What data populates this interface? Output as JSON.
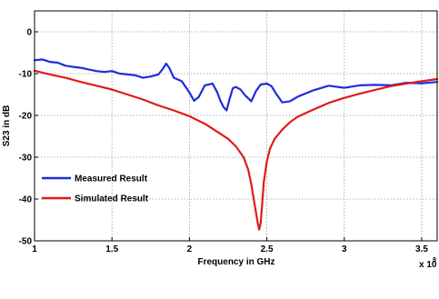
{
  "chart_data": {
    "type": "line",
    "xlabel": "Frequency in GHz",
    "ylabel": "S23 in dB",
    "x_multiplier": "x 10",
    "x_multiplier_exp": "9",
    "xlim": [
      1.0,
      3.6
    ],
    "ylim": [
      -50,
      5
    ],
    "xticks": [
      1,
      1.5,
      2,
      2.5,
      3,
      3.5
    ],
    "xtick_labels": [
      "1",
      "1.5",
      "2",
      "2.5",
      "3",
      "3.5"
    ],
    "yticks": [
      0,
      -10,
      -20,
      -30,
      -40,
      -50
    ],
    "ytick_labels": [
      "0",
      "-10",
      "-20",
      "-30",
      "-40",
      "-50"
    ],
    "grid": true,
    "legend_position": "left",
    "series": [
      {
        "name": "Measured Result",
        "color": "#1f2ed6",
        "x": [
          1.0,
          1.05,
          1.1,
          1.15,
          1.2,
          1.25,
          1.3,
          1.35,
          1.4,
          1.45,
          1.5,
          1.55,
          1.6,
          1.65,
          1.7,
          1.75,
          1.8,
          1.83,
          1.85,
          1.87,
          1.9,
          1.95,
          2.0,
          2.03,
          2.06,
          2.1,
          2.15,
          2.18,
          2.2,
          2.22,
          2.24,
          2.26,
          2.28,
          2.3,
          2.33,
          2.36,
          2.4,
          2.43,
          2.46,
          2.5,
          2.53,
          2.56,
          2.6,
          2.65,
          2.7,
          2.8,
          2.9,
          3.0,
          3.1,
          3.2,
          3.3,
          3.4,
          3.5,
          3.6
        ],
        "y": [
          -6.8,
          -6.6,
          -7.2,
          -7.4,
          -8.1,
          -8.4,
          -8.6,
          -9.0,
          -9.4,
          -9.6,
          -9.4,
          -10.0,
          -10.2,
          -10.4,
          -11.0,
          -10.7,
          -10.2,
          -8.8,
          -7.6,
          -8.6,
          -11.0,
          -11.8,
          -14.5,
          -16.5,
          -15.6,
          -12.8,
          -12.4,
          -14.5,
          -16.5,
          -18.0,
          -18.8,
          -16.0,
          -13.5,
          -13.2,
          -13.8,
          -15.2,
          -16.6,
          -14.2,
          -12.6,
          -12.4,
          -13.0,
          -14.8,
          -16.9,
          -16.6,
          -15.5,
          -14.0,
          -12.9,
          -13.4,
          -12.8,
          -12.7,
          -12.8,
          -12.2,
          -12.3,
          -12.0
        ]
      },
      {
        "name": "Simulated Result",
        "color": "#e01b1b",
        "x": [
          1.0,
          1.1,
          1.2,
          1.3,
          1.4,
          1.5,
          1.6,
          1.7,
          1.8,
          1.9,
          2.0,
          2.1,
          2.2,
          2.25,
          2.3,
          2.35,
          2.38,
          2.4,
          2.42,
          2.44,
          2.45,
          2.46,
          2.47,
          2.48,
          2.5,
          2.52,
          2.55,
          2.6,
          2.65,
          2.7,
          2.8,
          2.9,
          3.0,
          3.1,
          3.2,
          3.3,
          3.4,
          3.5,
          3.6
        ],
        "y": [
          -9.3,
          -10.2,
          -11.0,
          -12.0,
          -12.9,
          -13.8,
          -15.0,
          -16.2,
          -17.6,
          -18.8,
          -20.2,
          -22.0,
          -24.4,
          -25.6,
          -27.4,
          -30.0,
          -33.0,
          -36.5,
          -41.0,
          -45.5,
          -47.3,
          -45.8,
          -41.0,
          -36.0,
          -31.0,
          -28.0,
          -25.6,
          -23.4,
          -21.6,
          -20.3,
          -18.6,
          -17.0,
          -15.8,
          -14.8,
          -13.9,
          -13.0,
          -12.4,
          -11.8,
          -11.3
        ]
      }
    ]
  }
}
